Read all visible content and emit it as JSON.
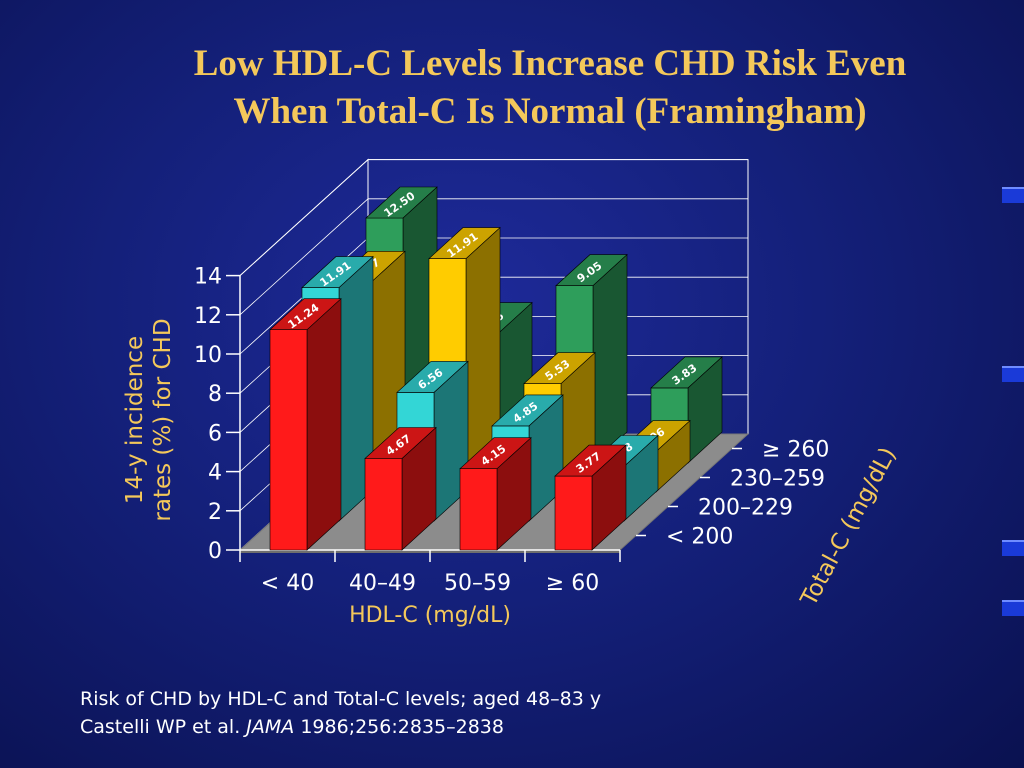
{
  "title": {
    "line1": "Low HDL-C Levels Increase CHD Risk Even",
    "line2": "When Total-C Is Normal (Framingham)"
  },
  "caption": {
    "line1": "Risk of CHD by HDL-C and Total-C levels; aged 48–83 y",
    "author": "Castelli WP et al.",
    "journal": "JAMA",
    "citation": "1986;256:2835–2838"
  },
  "chart_data": {
    "type": "bar",
    "style": "3d-grouped",
    "ylabel": "14-y incidence rates (%) for CHD",
    "xlabel": "HDL-C (mg/dL)",
    "zlabel": "Total-C (mg/dL)",
    "ylim": [
      0,
      14
    ],
    "yticks": [
      0,
      2,
      4,
      6,
      8,
      10,
      12,
      14
    ],
    "grid": true,
    "categories": [
      "< 40",
      "40–49",
      "50–59",
      "≥ 60"
    ],
    "series": [
      {
        "name": "< 200",
        "color": "#ff1a1a",
        "values": [
          11.24,
          4.67,
          4.15,
          3.77
        ]
      },
      {
        "name": "200–229",
        "color": "#33d6d6",
        "values": [
          11.91,
          6.56,
          4.85,
          2.78
        ]
      },
      {
        "name": "230–259",
        "color": "#ffcc00",
        "values": [
          10.7,
          11.91,
          5.53,
          2.06
        ]
      },
      {
        "name": "≥ 260",
        "color": "#2e9e5b",
        "values": [
          12.5,
          6.6,
          9.05,
          3.83
        ]
      }
    ]
  },
  "decor": {
    "bullets": [
      "bullet",
      "bullet",
      "bullet",
      "bullet"
    ]
  }
}
